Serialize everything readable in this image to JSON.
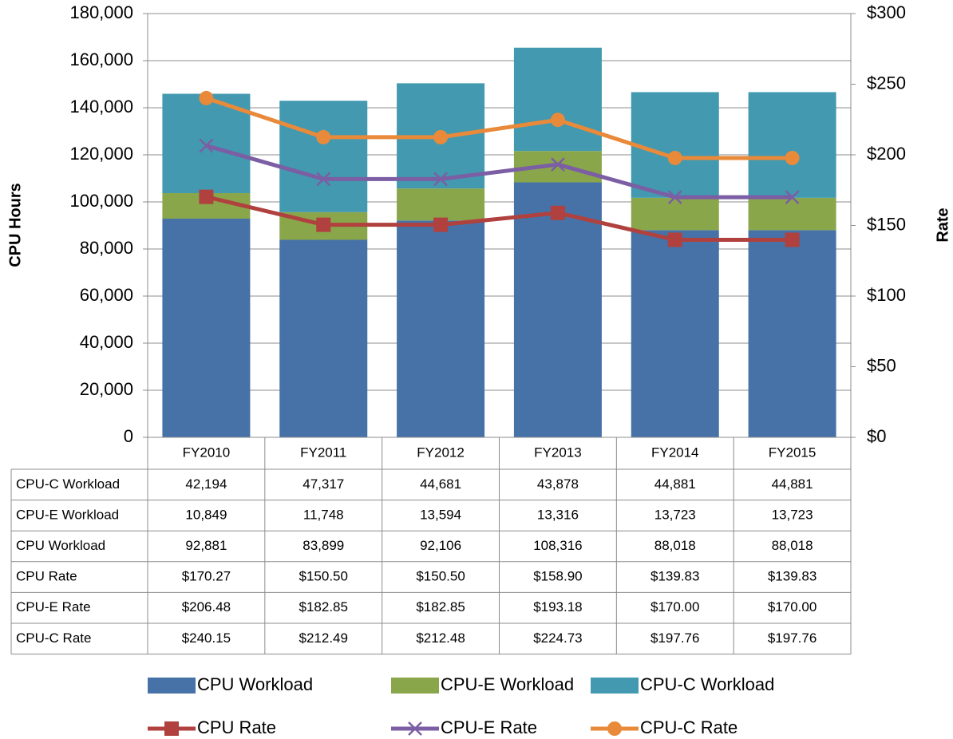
{
  "chart_data": {
    "type": "bar",
    "stacked": true,
    "ylabel": "CPU Hours",
    "y2label": "Rate",
    "categories": [
      "FY2010",
      "FY2011",
      "FY2012",
      "FY2013",
      "FY2014",
      "FY2015"
    ],
    "ylim": [
      0,
      180000
    ],
    "yticks": [
      0,
      {
        "value": 20000,
        "label": "20,000"
      },
      {
        "value": 40000,
        "label": "40,000"
      },
      {
        "value": 60000,
        "label": "60,000"
      },
      {
        "value": 80000,
        "label": "80,000"
      },
      {
        "value": 100000,
        "label": "100,000"
      },
      {
        "value": 120000,
        "label": "120,000"
      },
      {
        "value": 140000,
        "label": "140,000"
      },
      {
        "value": 160000,
        "label": "160,000"
      },
      {
        "value": 180000,
        "label": "180,000"
      }
    ],
    "y2lim": [
      0,
      300
    ],
    "y2ticks": [
      {
        "value": 0,
        "label": "$0"
      },
      {
        "value": 50,
        "label": "$50"
      },
      {
        "value": 100,
        "label": "$100"
      },
      {
        "value": 150,
        "label": "$150"
      },
      {
        "value": 200,
        "label": "$200"
      },
      {
        "value": 250,
        "label": "$250"
      },
      {
        "value": 300,
        "label": "$300"
      }
    ],
    "grid": true,
    "legend": "bottom",
    "data_table": true,
    "series": [
      {
        "name": "CPU-C Workload",
        "type": "bar",
        "color": "#4299b0",
        "values": [
          42194,
          47317,
          44681,
          43878,
          44881,
          44881
        ],
        "value_labels": [
          "42,194",
          "47,317",
          "44,681",
          "43,878",
          "44,881",
          "44,881"
        ]
      },
      {
        "name": "CPU-E Workload",
        "type": "bar",
        "color": "#8aa64b",
        "values": [
          10849,
          11748,
          13594,
          13316,
          13723,
          13723
        ],
        "value_labels": [
          "10,849",
          "11,748",
          "13,594",
          "13,316",
          "13,723",
          "13,723"
        ]
      },
      {
        "name": "CPU Workload",
        "type": "bar",
        "color": "#4672a8",
        "values": [
          92881,
          83899,
          92106,
          108316,
          88018,
          88018
        ],
        "value_labels": [
          "92,881",
          "83,899",
          "92,106",
          "108,316",
          "88,018",
          "88,018"
        ]
      },
      {
        "name": "CPU Rate",
        "type": "line",
        "axis": "y2",
        "marker": "square",
        "color": "#b0413e",
        "values": [
          170.27,
          150.5,
          150.5,
          158.9,
          139.83,
          139.83
        ],
        "value_labels": [
          "$170.27",
          "$150.50",
          "$150.50",
          "$158.90",
          "$139.83",
          "$139.83"
        ]
      },
      {
        "name": "CPU-E Rate",
        "type": "line",
        "axis": "y2",
        "marker": "x",
        "color": "#7b5ea3",
        "values": [
          206.48,
          182.85,
          182.85,
          193.18,
          170.0,
          170.0
        ],
        "value_labels": [
          "$206.48",
          "$182.85",
          "$182.85",
          "$193.18",
          "$170.00",
          "$170.00"
        ]
      },
      {
        "name": "CPU-C Rate",
        "type": "line",
        "axis": "y2",
        "marker": "circle",
        "color": "#e98a3a",
        "values": [
          240.15,
          212.49,
          212.48,
          224.73,
          197.76,
          197.76
        ],
        "value_labels": [
          "$240.15",
          "$212.49",
          "$212.48",
          "$224.73",
          "$197.76",
          "$197.76"
        ]
      }
    ]
  }
}
